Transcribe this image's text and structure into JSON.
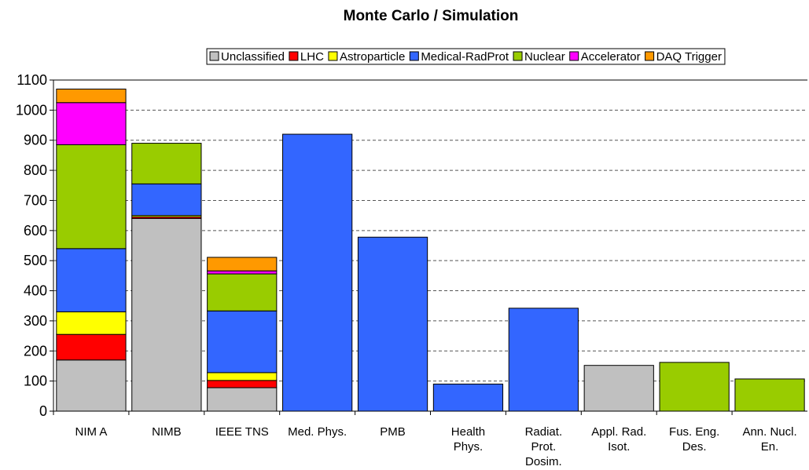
{
  "chart_data": {
    "type": "stacked_bar",
    "title": "Monte Carlo / Simulation",
    "categories": [
      "NIM A",
      "NIMB",
      "IEEE TNS",
      "Med. Phys.",
      "PMB",
      "Health Phys.",
      "Radiat. Prot. Dosim.",
      "Appl. Rad. Isot.",
      "Fus. Eng. Des.",
      "Ann. Nucl. En."
    ],
    "series": [
      {
        "name": "Unclassified",
        "color": "#c0c0c0",
        "values": [
          170,
          640,
          78,
          null,
          null,
          null,
          null,
          152,
          null,
          null
        ]
      },
      {
        "name": "LHC",
        "color": "#ff0000",
        "values": [
          85,
          5,
          24,
          null,
          null,
          null,
          null,
          null,
          null,
          null
        ]
      },
      {
        "name": "Astroparticle",
        "color": "#ffff00",
        "values": [
          75,
          5,
          26,
          null,
          null,
          null,
          null,
          null,
          null,
          null
        ]
      },
      {
        "name": "Medical-RadProt",
        "color": "#3366ff",
        "values": [
          210,
          105,
          205,
          920,
          578,
          90,
          342,
          null,
          null,
          null
        ]
      },
      {
        "name": "Nuclear",
        "color": "#99cc00",
        "values": [
          345,
          135,
          123,
          null,
          null,
          null,
          null,
          null,
          162,
          107
        ]
      },
      {
        "name": "Accelerator",
        "color": "#ff00ff",
        "values": [
          140,
          null,
          10,
          null,
          null,
          null,
          null,
          null,
          null,
          null
        ]
      },
      {
        "name": "DAQ Trigger",
        "color": "#ff9900",
        "values": [
          45,
          null,
          45,
          null,
          null,
          null,
          null,
          null,
          null,
          null
        ]
      }
    ],
    "ylim": [
      0,
      1100
    ],
    "yticks": [
      0,
      100,
      200,
      300,
      400,
      500,
      600,
      700,
      800,
      900,
      1000,
      1100
    ],
    "grid": true,
    "legend": "top"
  }
}
